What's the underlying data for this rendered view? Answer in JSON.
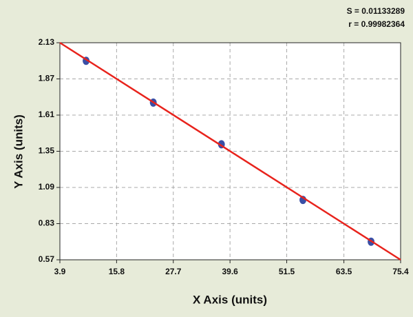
{
  "chart_data": {
    "type": "scatter",
    "annotations": [
      "S = 0.01133289",
      "r = 0.99982364"
    ],
    "x_label": "X Axis (units)",
    "y_label": "Y Axis (units)",
    "x": [
      9.4,
      23.5,
      37.8,
      54.9,
      69.2
    ],
    "values": [
      2.0,
      1.7,
      1.4,
      1.0,
      0.7
    ],
    "color": "#3a4fa6",
    "fit": {
      "x": [
        3.9,
        75.4
      ],
      "values": [
        2.13,
        0.57
      ],
      "color": "#e8231c"
    },
    "xlim": [
      3.9,
      75.4
    ],
    "xticks": [
      3.9,
      15.8,
      27.7,
      39.6,
      51.5,
      63.5,
      75.4
    ],
    "ylim": [
      0.57,
      2.13
    ],
    "yticks": [
      0.57,
      0.83,
      1.09,
      1.35,
      1.61,
      1.87,
      2.13
    ],
    "grid": true
  }
}
